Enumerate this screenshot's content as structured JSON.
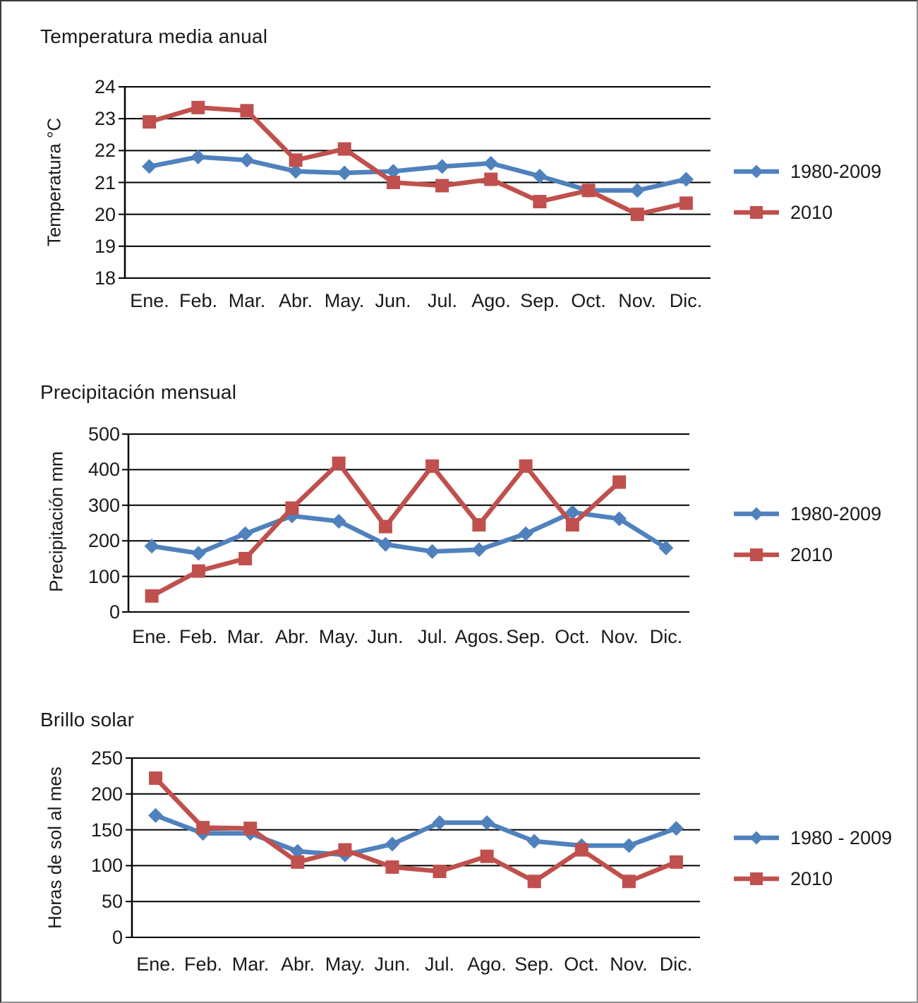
{
  "chart_data": [
    {
      "type": "line",
      "title": "Temperatura media anual",
      "ylabel": "Temperatura °C",
      "xlabel": "",
      "categories": [
        "Ene.",
        "Feb.",
        "Mar.",
        "Abr.",
        "May.",
        "Jun.",
        "Jul.",
        "Ago.",
        "Sep.",
        "Oct.",
        "Nov.",
        "Dic."
      ],
      "ylim": [
        18,
        24
      ],
      "yticks": [
        24,
        23,
        22,
        21,
        20,
        19,
        18
      ],
      "grid": true,
      "legend_position": "right",
      "series": [
        {
          "name": "1980-2009",
          "color": "#4F81BD",
          "marker": "diamond",
          "values": [
            21.5,
            21.8,
            21.7,
            21.35,
            21.3,
            21.35,
            21.5,
            21.6,
            21.2,
            20.75,
            20.75,
            21.1
          ]
        },
        {
          "name": "2010",
          "color": "#C0504D",
          "marker": "square",
          "values": [
            22.9,
            23.35,
            23.25,
            21.7,
            22.05,
            21.0,
            20.9,
            21.1,
            20.4,
            20.75,
            20.0,
            20.35
          ]
        }
      ]
    },
    {
      "type": "line",
      "title": "Precipitación mensual",
      "ylabel": "Precipitación mm",
      "xlabel": "",
      "categories": [
        "Ene.",
        "Feb.",
        "Mar.",
        "Abr.",
        "May.",
        "Jun.",
        "Jul.",
        "Agos.",
        "Sep.",
        "Oct.",
        "Nov.",
        "Dic."
      ],
      "ylim": [
        0,
        500
      ],
      "yticks": [
        500,
        400,
        300,
        200,
        100,
        0
      ],
      "grid": true,
      "legend_position": "right",
      "series": [
        {
          "name": "1980-2009",
          "color": "#4F81BD",
          "marker": "diamond",
          "values": [
            185,
            165,
            220,
            270,
            255,
            190,
            170,
            175,
            220,
            280,
            262,
            180
          ]
        },
        {
          "name": "2010",
          "color": "#C0504D",
          "marker": "square",
          "values": [
            45,
            115,
            150,
            292,
            418,
            240,
            410,
            245,
            410,
            245,
            365,
            null
          ]
        }
      ]
    },
    {
      "type": "line",
      "title": "Brillo solar",
      "ylabel": "Horas de sol al mes",
      "xlabel": "",
      "categories": [
        "Ene.",
        "Feb.",
        "Mar.",
        "Abr.",
        "May.",
        "Jun.",
        "Jul.",
        "Ago.",
        "Sep.",
        "Oct.",
        "Nov.",
        "Dic."
      ],
      "ylim": [
        0,
        250
      ],
      "yticks": [
        250,
        200,
        150,
        100,
        50,
        0
      ],
      "grid": true,
      "legend_position": "right",
      "series": [
        {
          "name": "1980 - 2009",
          "color": "#4F81BD",
          "marker": "diamond",
          "values": [
            170,
            145,
            145,
            120,
            115,
            130,
            160,
            160,
            134,
            128,
            128,
            152
          ]
        },
        {
          "name": "2010",
          "color": "#C0504D",
          "marker": "square",
          "values": [
            222,
            153,
            152,
            105,
            122,
            98,
            92,
            113,
            78,
            122,
            78,
            105
          ]
        }
      ]
    }
  ]
}
